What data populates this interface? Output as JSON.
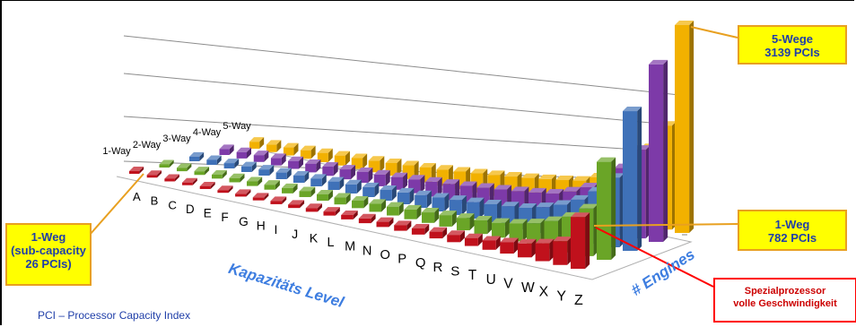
{
  "chart_data": {
    "type": "bar",
    "categories": [
      "A",
      "B",
      "C",
      "D",
      "E",
      "F",
      "G",
      "H",
      "I",
      "J",
      "K",
      "L",
      "M",
      "N",
      "O",
      "P",
      "Q",
      "R",
      "S",
      "T",
      "U",
      "V",
      "W",
      "X",
      "Y",
      "Z"
    ],
    "series": [
      {
        "name": "1-Way",
        "color": "#c0111c",
        "values": [
          26,
          28,
          30,
          32,
          35,
          38,
          41,
          44,
          48,
          52,
          56,
          61,
          66,
          72,
          78,
          85,
          93,
          101,
          110,
          120,
          140,
          170,
          210,
          270,
          360,
          782
        ]
      },
      {
        "name": "2-Way",
        "color": "#6aa527",
        "values": [
          48,
          51,
          55,
          59,
          64,
          69,
          75,
          81,
          88,
          96,
          104,
          113,
          123,
          134,
          146,
          159,
          173,
          188,
          205,
          225,
          270,
          330,
          420,
          540,
          720,
          1480
        ]
      },
      {
        "name": "3-Way",
        "color": "#3f71b8",
        "values": [
          70,
          75,
          80,
          86,
          93,
          100,
          108,
          117,
          127,
          138,
          150,
          163,
          177,
          193,
          210,
          229,
          249,
          271,
          295,
          325,
          390,
          480,
          610,
          790,
          1050,
          2110
        ]
      },
      {
        "name": "4-Way",
        "color": "#7d3aa8",
        "values": [
          90,
          96,
          103,
          111,
          119,
          128,
          139,
          150,
          163,
          177,
          192,
          209,
          227,
          247,
          269,
          293,
          319,
          347,
          378,
          415,
          500,
          615,
          780,
          1010,
          1340,
          2680
        ]
      },
      {
        "name": "5-Way",
        "color": "#f2b100",
        "values": [
          106,
          113,
          121,
          130,
          140,
          151,
          163,
          176,
          191,
          207,
          225,
          245,
          266,
          289,
          315,
          343,
          373,
          406,
          442,
          485,
          585,
          720,
          915,
          1180,
          1570,
          3139
        ]
      }
    ],
    "xlabel": "Kapazitäts Level",
    "zlabel": "# Engines",
    "grid": true
  },
  "callouts": {
    "top_right": {
      "line1": "5-Wege",
      "line2": "3139 PCIs"
    },
    "mid_right": {
      "line1": "1-Weg",
      "line2": "782 PCIs"
    },
    "left": {
      "line1": "1-Weg",
      "line2": "(sub-capacity",
      "line3": "26 PCIs)"
    },
    "special": {
      "line1": "Spezialprozessor",
      "line2": "volle Geschwindigkeit"
    }
  },
  "footnote": "PCI – Processor Capacity Index"
}
